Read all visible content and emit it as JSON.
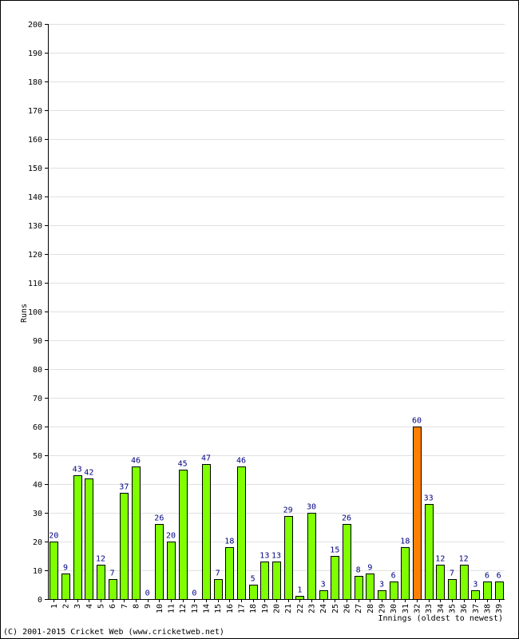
{
  "chart_data": {
    "type": "bar",
    "ylabel": "Runs",
    "xlabel": "Innings (oldest to newest)",
    "ylim": [
      0,
      200
    ],
    "ytick_step": 10,
    "grid": true,
    "categories": [
      "1",
      "2",
      "3",
      "4",
      "5",
      "6",
      "7",
      "8",
      "9",
      "10",
      "11",
      "12",
      "13",
      "14",
      "15",
      "16",
      "17",
      "18",
      "19",
      "20",
      "21",
      "22",
      "23",
      "24",
      "25",
      "26",
      "27",
      "28",
      "29",
      "30",
      "31",
      "32",
      "33",
      "34",
      "35",
      "36",
      "37",
      "38",
      "39"
    ],
    "values": [
      20,
      9,
      43,
      42,
      12,
      7,
      37,
      46,
      0,
      26,
      20,
      45,
      0,
      47,
      7,
      18,
      46,
      5,
      13,
      13,
      29,
      1,
      30,
      3,
      15,
      26,
      8,
      9,
      3,
      6,
      18,
      60,
      33,
      12,
      7,
      12,
      3,
      6,
      6
    ],
    "highlight_index": 31,
    "colors": {
      "bar": "#80ff00",
      "highlight": "#ff8000",
      "label": "#000080",
      "grid": "#e0e0e0",
      "border": "#000000"
    }
  },
  "footer": {
    "copyright": "(C) 2001-2015 Cricket Web (www.cricketweb.net)"
  }
}
